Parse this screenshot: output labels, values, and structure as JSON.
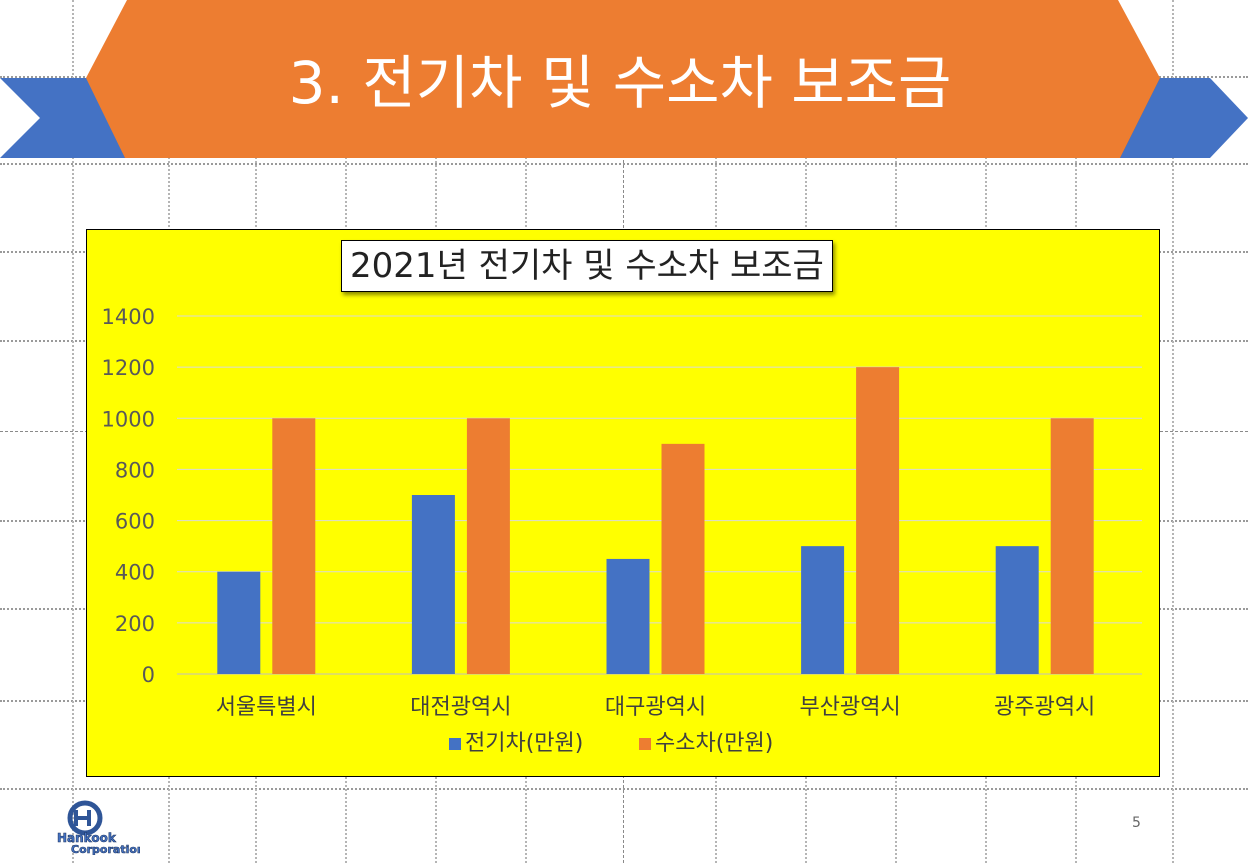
{
  "slide": {
    "title": "3. 전기차 및 수소차 보조금",
    "page_number": "5",
    "logo_text_top": "Hankook",
    "logo_text_bottom": "Corporation"
  },
  "colors": {
    "banner_orange": "#ED7D31",
    "banner_blue": "#4472C4",
    "chart_background": "#FFFF00",
    "series_blue": "#4472C4",
    "series_orange": "#ED7D31"
  },
  "chart_data": {
    "type": "bar",
    "title": "2021년 전기차 및 수소차 보조금",
    "categories": [
      "서울특별시",
      "대전광역시",
      "대구광역시",
      "부산광역시",
      "광주광역시"
    ],
    "series": [
      {
        "name": "전기차(만원)",
        "color": "#4472C4",
        "values": [
          400,
          700,
          450,
          500,
          500
        ]
      },
      {
        "name": "수소차(만원)",
        "color": "#ED7D31",
        "values": [
          1000,
          1000,
          900,
          1200,
          1000
        ]
      }
    ],
    "ylim": [
      0,
      1400
    ],
    "yticks": [
      0,
      200,
      400,
      600,
      800,
      1000,
      1200,
      1400
    ],
    "grid": true,
    "legend_position": "bottom"
  }
}
